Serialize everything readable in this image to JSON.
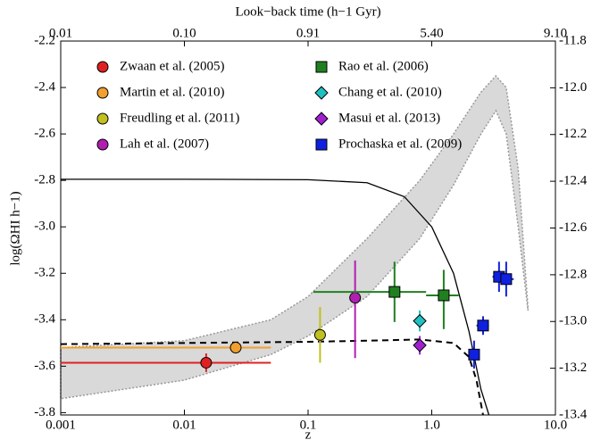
{
  "chart_data": {
    "type": "scatter",
    "title": "Look−back time (h−1 Gyr)",
    "x_label": "z",
    "y_label": "log(ΩHI h−1)",
    "xscale": "log",
    "xlim": [
      0.001,
      10
    ],
    "xticks": [
      0.001,
      0.01,
      0.1,
      {
        "value": 1,
        "label": "1.0"
      },
      {
        "value": 10,
        "label": "10.0"
      }
    ],
    "top_ticks": [
      {
        "value": 0.001,
        "label": "0.01"
      },
      {
        "value": 0.01,
        "label": "0.10"
      },
      {
        "value": 0.1,
        "label": "0.91"
      },
      {
        "value": 1,
        "label": "5.40"
      },
      {
        "value": 10,
        "label": "9.10"
      }
    ],
    "ylim": [
      -3.81,
      -2.2
    ],
    "yticks": [
      -3.8,
      -3.6,
      -3.4,
      -3.2,
      {
        "value": -3,
        "label": "-3.0"
      },
      -2.8,
      -2.6,
      -2.4,
      -2.2
    ],
    "y2lim": [
      -13.4,
      -11.8
    ],
    "y2ticks": [
      -13.4,
      -13.2,
      {
        "value": -13,
        "label": "-13.0"
      },
      -12.8,
      -12.6,
      -12.4,
      -12.2,
      {
        "value": -12,
        "label": "-12.0"
      },
      -11.8
    ],
    "band": {
      "color": "#d9d9d9",
      "x": [
        0.001,
        0.01,
        0.05,
        0.1,
        0.3,
        0.8,
        1.5,
        2.5,
        3.3,
        4,
        5,
        6
      ],
      "high": [
        -3.52,
        -3.49,
        -3.4,
        -3.3,
        -3.05,
        -2.8,
        -2.6,
        -2.42,
        -2.35,
        -2.4,
        -2.75,
        -3.35
      ],
      "low": [
        -3.74,
        -3.66,
        -3.55,
        -3.47,
        -3.3,
        -3.05,
        -2.82,
        -2.6,
        -2.5,
        -2.6,
        -3.0,
        -3.36
      ]
    },
    "curves": [
      {
        "color": "#000000",
        "dash": false,
        "x": [
          0.001,
          0.01,
          0.1,
          0.3,
          0.6,
          1,
          1.5,
          2,
          2.5,
          2.9
        ],
        "values": [
          -2.795,
          -2.795,
          -2.797,
          -2.81,
          -2.87,
          -3.0,
          -3.2,
          -3.45,
          -3.7,
          -3.81
        ]
      },
      {
        "color": "#000000",
        "dash": true,
        "x": [
          0.001,
          0.01,
          0.1,
          0.3,
          0.8,
          1.5,
          2,
          2.3,
          2.6
        ],
        "values": [
          -3.505,
          -3.5,
          -3.495,
          -3.49,
          -3.485,
          -3.5,
          -3.56,
          -3.66,
          -3.81
        ]
      }
    ],
    "series": [
      {
        "name": "Zwaan et al. (2005)",
        "color": "#e02020",
        "marker": "circle",
        "x": [
          0.015
        ],
        "values": [
          -3.585
        ],
        "y_low": [
          -3.625
        ],
        "y_high": [
          -3.545
        ],
        "x_low": [
          0.001
        ],
        "x_high": [
          0.05
        ]
      },
      {
        "name": "Martin et al. (2010)",
        "color": "#f0a030",
        "marker": "circle",
        "x": [
          0.026
        ],
        "values": [
          -3.52
        ],
        "y_low": [
          -3.54
        ],
        "y_high": [
          -3.5
        ],
        "x_low": [
          0.001
        ],
        "x_high": [
          0.05
        ]
      },
      {
        "name": "Freudling et al. (2011)",
        "color": "#c0c020",
        "marker": "circle",
        "x": [
          0.125
        ],
        "values": [
          -3.465
        ],
        "y_low": [
          -3.585
        ],
        "y_high": [
          -3.345
        ],
        "x_low": [
          null
        ],
        "x_high": [
          null
        ]
      },
      {
        "name": "Lah et al. (2007)",
        "color": "#b020b0",
        "marker": "circle",
        "x": [
          0.24
        ],
        "values": [
          -3.305
        ],
        "y_low": [
          -3.565
        ],
        "y_high": [
          -3.145
        ],
        "x_low": [
          null
        ],
        "x_high": [
          null
        ]
      },
      {
        "name": "Rao et al. (2006)",
        "color": "#208020",
        "marker": "square",
        "x": [
          0.5,
          1.25
        ],
        "values": [
          -3.28,
          -3.295
        ],
        "y_low": [
          -3.41,
          -3.44
        ],
        "y_high": [
          -3.15,
          -3.185
        ],
        "x_low": [
          0.11,
          0.9
        ],
        "x_high": [
          0.9,
          1.65
        ]
      },
      {
        "name": "Chang et al. (2010)",
        "color": "#20c0c0",
        "marker": "diamond",
        "x": [
          0.8
        ],
        "values": [
          -3.405
        ],
        "y_low": [
          -3.45
        ],
        "y_high": [
          -3.36
        ],
        "x_low": [
          null
        ],
        "x_high": [
          null
        ]
      },
      {
        "name": "Masui et al. (2013)",
        "color": "#a020d0",
        "marker": "diamond",
        "x": [
          0.8
        ],
        "values": [
          -3.51
        ],
        "y_low": [
          -3.55
        ],
        "y_high": [
          -3.47
        ],
        "x_low": [
          null
        ],
        "x_high": [
          null
        ]
      },
      {
        "name": "Prochaska et al. (2009)",
        "color": "#1020e0",
        "marker": "square",
        "x": [
          2.2,
          2.6,
          3.5,
          4.0
        ],
        "values": [
          -3.55,
          -3.425,
          -3.215,
          -3.225
        ],
        "y_low": [
          -3.61,
          -3.465,
          -3.28,
          -3.3
        ],
        "y_high": [
          -3.49,
          -3.385,
          -3.15,
          -3.15
        ],
        "x_low": [
          2.0,
          2.3,
          3.1,
          3.6
        ],
        "x_high": [
          2.4,
          2.9,
          3.9,
          4.6
        ]
      }
    ]
  }
}
